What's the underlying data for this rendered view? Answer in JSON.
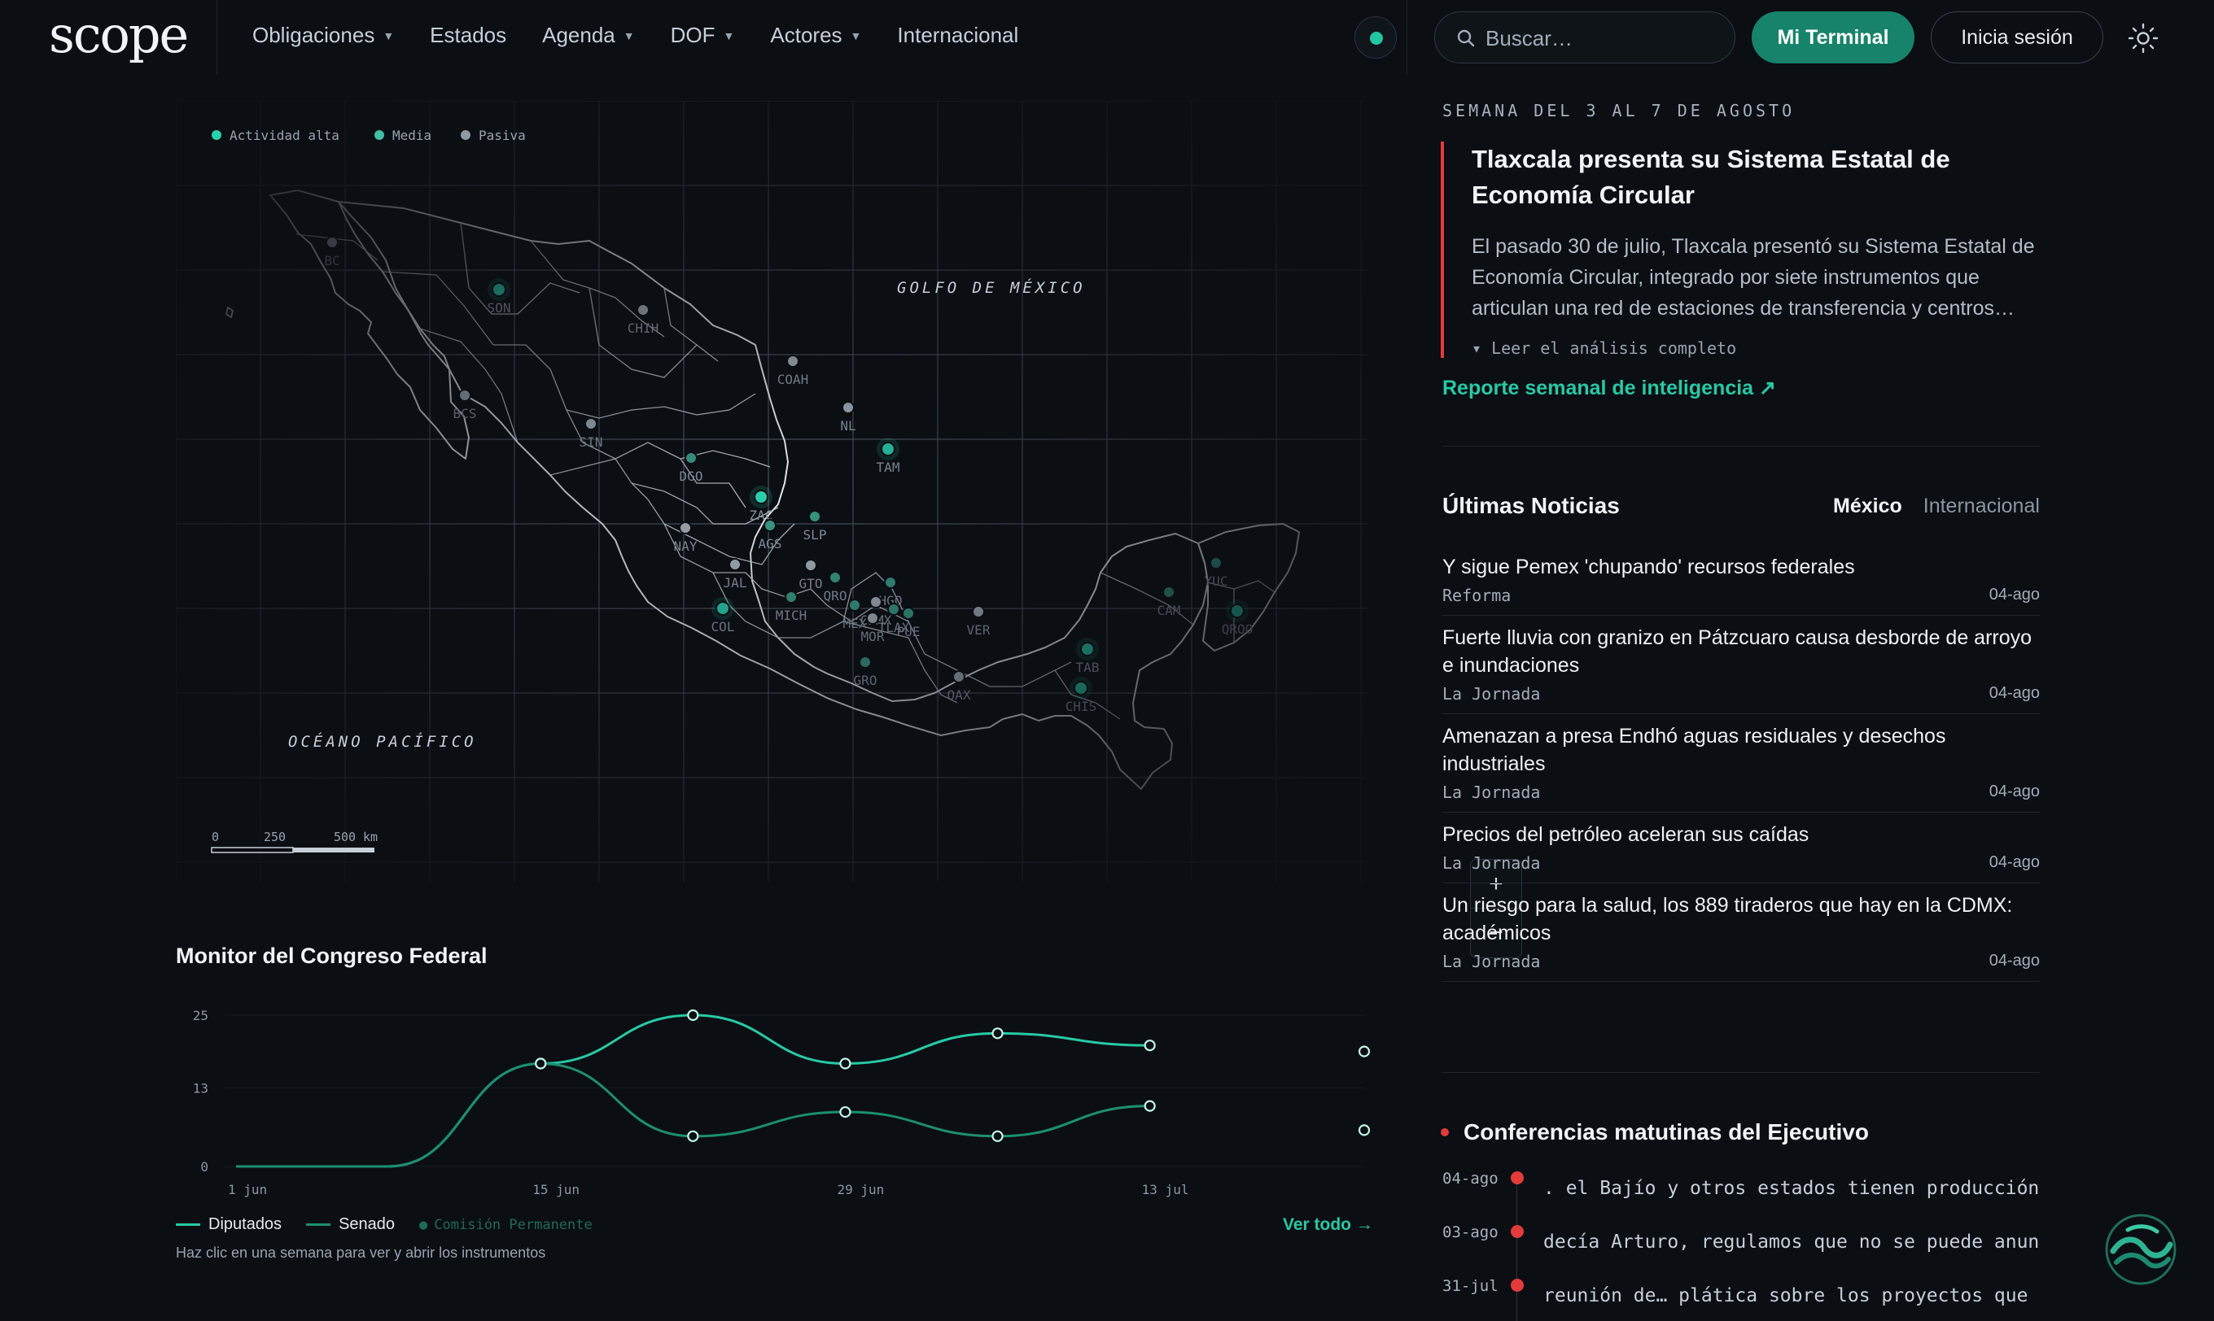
{
  "brand": {
    "logo": "scope"
  },
  "nav": {
    "items": [
      {
        "label": "Obligaciones",
        "dropdown": true
      },
      {
        "label": "Estados",
        "dropdown": false
      },
      {
        "label": "Agenda",
        "dropdown": true
      },
      {
        "label": "DOF",
        "dropdown": true
      },
      {
        "label": "Actores",
        "dropdown": true
      },
      {
        "label": "Internacional",
        "dropdown": false
      }
    ]
  },
  "search": {
    "placeholder": "Buscar…"
  },
  "header": {
    "terminal_label": "Mi Terminal",
    "login_label": "Inicia sesión"
  },
  "colors": {
    "accent": "#22c6a3",
    "accent_dark": "#17836a",
    "alert": "#e33b3b",
    "background": "#0b0e13"
  },
  "map": {
    "legend": [
      {
        "label": "Actividad alta",
        "color": "#2ad1b0"
      },
      {
        "label": "Media",
        "color": "#3fbfa3"
      },
      {
        "label": "Pasiva",
        "color": "#8f9aa5"
      }
    ],
    "sea_labels": {
      "gulf": "GOLFO DE MÉXICO",
      "pacific": "OCÉANO PACÍFICO"
    },
    "scale": {
      "labels": [
        "0",
        "250",
        "500"
      ],
      "unit": "km"
    },
    "zoom": {
      "in": "+",
      "out": "−"
    },
    "states": [
      {
        "code": "BC",
        "level": "pasiva"
      },
      {
        "code": "SON",
        "level": "alta"
      },
      {
        "code": "CHIH",
        "level": "pasiva"
      },
      {
        "code": "BCS",
        "level": "pasiva"
      },
      {
        "code": "COAH",
        "level": "pasiva"
      },
      {
        "code": "NL",
        "level": "pasiva"
      },
      {
        "code": "SIN",
        "level": "pasiva"
      },
      {
        "code": "TAM",
        "level": "alta"
      },
      {
        "code": "DGO",
        "level": "media"
      },
      {
        "code": "ZAC",
        "level": "alta"
      },
      {
        "code": "SLP",
        "level": "media"
      },
      {
        "code": "NAY",
        "level": "pasiva"
      },
      {
        "code": "AGS",
        "level": "media"
      },
      {
        "code": "JAL",
        "level": "pasiva"
      },
      {
        "code": "GTO",
        "level": "pasiva"
      },
      {
        "code": "QRO",
        "level": "media"
      },
      {
        "code": "HGO",
        "level": "media"
      },
      {
        "code": "COL",
        "level": "alta"
      },
      {
        "code": "MICH",
        "level": "media"
      },
      {
        "code": "MEX",
        "level": "media"
      },
      {
        "code": "CDMX",
        "level": "pasiva"
      },
      {
        "code": "TLAX",
        "level": "media"
      },
      {
        "code": "MOR",
        "level": "pasiva"
      },
      {
        "code": "PUE",
        "level": "media"
      },
      {
        "code": "GRO",
        "level": "media"
      },
      {
        "code": "VER",
        "level": "pasiva"
      },
      {
        "code": "OAX",
        "level": "pasiva"
      },
      {
        "code": "TAB",
        "level": "alta"
      },
      {
        "code": "CHIS",
        "level": "alta"
      },
      {
        "code": "CAM",
        "level": "media"
      },
      {
        "code": "YUC",
        "level": "media"
      },
      {
        "code": "QROO",
        "level": "alta"
      }
    ]
  },
  "congress": {
    "title": "Monitor del Congreso Federal",
    "legend": [
      {
        "label": "Diputados",
        "color": "#27c9a5"
      },
      {
        "label": "Senado",
        "color": "#1c8f70"
      },
      {
        "label": "Comisión Permanente",
        "color": "#155f4c"
      }
    ],
    "hint": "Haz clic en una semana para ver y abrir los instrumentos",
    "see_all": "Ver todo →"
  },
  "chart_data": {
    "type": "line",
    "x": [
      "1 jun",
      "8 jun",
      "15 jun",
      "22 jun",
      "29 jun",
      "6 jul",
      "13 jul",
      "20 jul"
    ],
    "xticks": [
      "1 jun",
      "15 jun",
      "29 jun",
      "13 jul"
    ],
    "yticks": [
      0,
      13,
      25
    ],
    "ylim": [
      0,
      25
    ],
    "series": [
      {
        "name": "Diputados",
        "values": [
          0,
          0,
          17,
          25,
          17,
          22,
          20,
          19
        ]
      },
      {
        "name": "Senado",
        "values": [
          0,
          0,
          17,
          5,
          9,
          5,
          10,
          6
        ]
      }
    ],
    "legend_position": "bottom-left"
  },
  "intel": {
    "week": "SEMANA DEL 3 AL 7 DE AGOSTO",
    "headline": "Tlaxcala presenta su Sistema Estatal de Economía Circular",
    "summary": "El pasado 30 de julio, Tlaxcala presentó su Sistema Estatal de Economía Circular, integrado por siete instrumentos que articulan una red de estaciones de transferencia y centros…",
    "read_more": "▾ Leer el análisis completo",
    "report_link": "Reporte semanal de inteligencia ↗"
  },
  "news": {
    "title": "Últimas Noticias",
    "tabs": [
      {
        "label": "México",
        "active": true
      },
      {
        "label": "Internacional",
        "active": false
      }
    ],
    "items": [
      {
        "title": "Y sigue Pemex 'chupando' recursos federales",
        "source": "Reforma",
        "date": "04-ago"
      },
      {
        "title": "Fuerte lluvia con granizo en Pátzcuaro causa desborde de arroyo e inundaciones",
        "source": "La Jornada",
        "date": "04-ago"
      },
      {
        "title": "Amenazan a presa Endhó aguas residuales y desechos industriales",
        "source": "La Jornada",
        "date": "04-ago"
      },
      {
        "title": "Precios del petróleo aceleran sus caídas",
        "source": "La Jornada",
        "date": "04-ago"
      },
      {
        "title": "Un riesgo para la salud, los 889 tiraderos que hay en la CDMX: académicos",
        "source": "La Jornada",
        "date": "04-ago"
      }
    ]
  },
  "conferences": {
    "title": "Conferencias matutinas del Ejecutivo",
    "items": [
      {
        "date": "04-ago",
        "text": ". el Bajío y otros estados tienen producción de"
      },
      {
        "date": "03-ago",
        "text": "decía Arturo, regulamos que no se puede anunci"
      },
      {
        "date": "31-jul",
        "text": "reunión de… plática sobre los proyectos que el"
      }
    ]
  }
}
